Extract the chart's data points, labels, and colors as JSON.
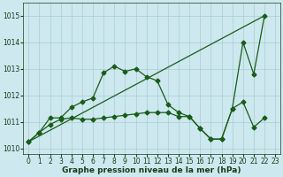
{
  "xlabel": "Graphe pression niveau de la mer (hPa)",
  "xlim": [
    -0.5,
    23.5
  ],
  "ylim": [
    1009.8,
    1015.5
  ],
  "yticks": [
    1010,
    1011,
    1012,
    1013,
    1014,
    1015
  ],
  "xticks": [
    0,
    1,
    2,
    3,
    4,
    5,
    6,
    7,
    8,
    9,
    10,
    11,
    12,
    13,
    14,
    15,
    16,
    17,
    18,
    19,
    20,
    21,
    22,
    23
  ],
  "background_color": "#cde8ee",
  "grid_color": "#aacdd5",
  "line_color": "#1a5c1a",
  "series1": {
    "x": [
      0,
      22
    ],
    "y": [
      1010.25,
      1015.0
    ]
  },
  "series2": {
    "x": [
      0,
      1,
      2,
      3,
      4,
      5,
      6,
      7,
      8,
      9,
      10,
      11,
      12,
      13,
      14,
      15,
      16,
      17,
      18,
      19,
      20,
      21,
      22
    ],
    "y": [
      1010.25,
      1010.6,
      1011.15,
      1011.15,
      1011.55,
      1011.75,
      1011.9,
      1012.85,
      1013.1,
      1012.9,
      1013.0,
      1012.7,
      1012.55,
      1011.65,
      1011.35,
      1011.2,
      1010.75,
      1010.35,
      1010.35,
      1011.5,
      1014.0,
      1012.8,
      1015.0
    ]
  },
  "series3": {
    "x": [
      0,
      1,
      2,
      3,
      4,
      5,
      6,
      7,
      8,
      9,
      10,
      11,
      12,
      13,
      14,
      15,
      16,
      17,
      18,
      19,
      20,
      21,
      22
    ],
    "y": [
      1010.25,
      1010.6,
      1010.9,
      1011.1,
      1011.15,
      1011.1,
      1011.1,
      1011.15,
      1011.2,
      1011.25,
      1011.3,
      1011.35,
      1011.35,
      1011.35,
      1011.2,
      1011.2,
      1010.75,
      1010.35,
      1010.35,
      1011.5,
      1011.75,
      1010.8,
      1011.15
    ]
  }
}
